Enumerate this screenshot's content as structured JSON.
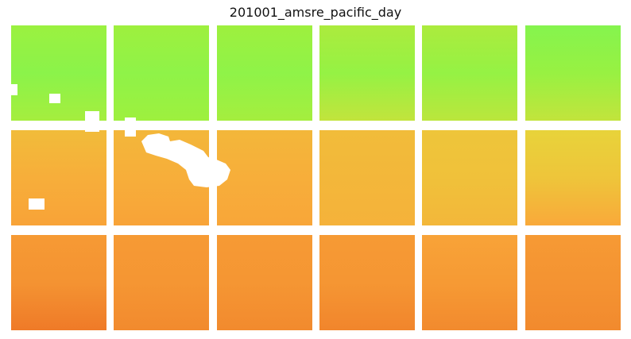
{
  "chart_data": {
    "type": "heatmap",
    "title": "201001_amsre_pacific_day",
    "layout": {
      "rows": 3,
      "cols": 6
    },
    "colormap": [
      "#e8541a",
      "#f28a2e",
      "#f9a93a",
      "#e6d83a",
      "#9ef03e",
      "#7ff552"
    ],
    "missing_value_color": "#ffffff",
    "tiles": [
      [
        0.82,
        0.92,
        0.78
      ],
      [
        0.8,
        0.9,
        0.8
      ],
      [
        0.8,
        0.9,
        0.78
      ],
      [
        0.76,
        0.86,
        0.7
      ],
      [
        0.76,
        0.86,
        0.72
      ],
      [
        0.96,
        0.84,
        0.7
      ],
      [
        0.48,
        0.42,
        0.36
      ],
      [
        0.46,
        0.42,
        0.36
      ],
      [
        0.46,
        0.42,
        0.38
      ],
      [
        0.48,
        0.46,
        0.44
      ],
      [
        0.52,
        0.5,
        0.46
      ],
      [
        0.58,
        0.52,
        0.4
      ],
      [
        0.3,
        0.26,
        0.14
      ],
      [
        0.3,
        0.28,
        0.2
      ],
      [
        0.3,
        0.28,
        0.2
      ],
      [
        0.3,
        0.28,
        0.18
      ],
      [
        0.36,
        0.3,
        0.2
      ],
      [
        0.3,
        0.26,
        0.2
      ]
    ]
  }
}
